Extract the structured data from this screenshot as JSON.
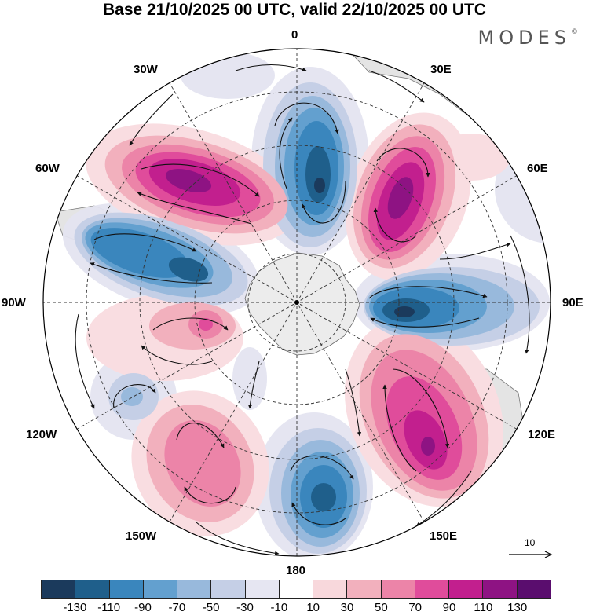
{
  "title": "Base 21/10/2025 00 UTC, valid 22/10/2025 00 UTC",
  "logo": "MODES",
  "logo_mark": "©",
  "longitude_labels": {
    "lon_0": "0",
    "lon_30e": "30E",
    "lon_60e": "60E",
    "lon_90e": "90E",
    "lon_120e": "120E",
    "lon_150e": "150E",
    "lon_180": "180",
    "lon_150w": "150W",
    "lon_120w": "120W",
    "lon_90w": "90W",
    "lon_60w": "60W",
    "lon_30w": "30W"
  },
  "reference_vector": "10",
  "colorbar": {
    "colors": [
      "#1b3a5c",
      "#1f5f8b",
      "#3a86bd",
      "#63a0cf",
      "#98b9dc",
      "#c5cfe6",
      "#e6e6f2",
      "#ffffff",
      "#f8d8dc",
      "#f2b0bd",
      "#ec84a8",
      "#e04c9b",
      "#c21f8e",
      "#8e1383",
      "#5a0d6e"
    ],
    "labels": [
      "-130",
      "-110",
      "-90",
      "-70",
      "-50",
      "-30",
      "-10",
      "10",
      "30",
      "50",
      "70",
      "90",
      "110",
      "130"
    ]
  },
  "colors": {
    "negative_strong": "#1f5f8b",
    "negative_light": "#c5cfe6",
    "positive_strong": "#c21f8e",
    "positive_light": "#f8d8dc",
    "land": "#e6e6e6"
  }
}
